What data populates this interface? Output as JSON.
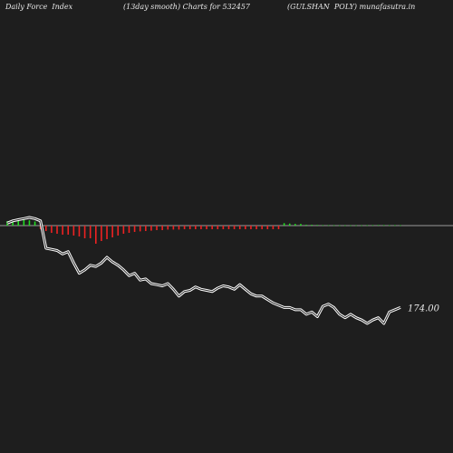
{
  "header": {
    "left": "Daily Force  Index",
    "center": "(13day smooth) Charts for 532457",
    "right": "(GULSHAN  POLY) munafasutra.in"
  },
  "chart_data": {
    "type": "line",
    "title": "(13day smooth) Charts for 532457",
    "last_value_label": "174.00",
    "colors": {
      "line": "#ffffff",
      "baseline": "#9a9a9a",
      "positive": "#22dd22",
      "negative": "#ee2222",
      "background": "#1e1e1e"
    },
    "line_values": [
      0.8,
      0.82,
      0.83,
      0.84,
      0.85,
      0.84,
      0.82,
      0.58,
      0.57,
      0.56,
      0.53,
      0.55,
      0.45,
      0.36,
      0.39,
      0.43,
      0.42,
      0.45,
      0.5,
      0.46,
      0.43,
      0.39,
      0.34,
      0.36,
      0.3,
      0.31,
      0.27,
      0.26,
      0.25,
      0.27,
      0.22,
      0.16,
      0.2,
      0.21,
      0.24,
      0.22,
      0.21,
      0.2,
      0.23,
      0.25,
      0.24,
      0.22,
      0.26,
      0.22,
      0.18,
      0.16,
      0.16,
      0.13,
      0.1,
      0.08,
      0.06,
      0.06,
      0.04,
      0.04,
      0.0,
      0.02,
      -0.02,
      0.07,
      0.09,
      0.06,
      0.0,
      -0.03,
      0.0,
      -0.03,
      -0.05,
      -0.08,
      -0.05,
      -0.03,
      -0.08,
      0.02,
      0.04,
      0.06
    ],
    "force_values": [
      0.55,
      0.65,
      0.75,
      0.8,
      0.65,
      0.5,
      -0.2,
      -0.3,
      -0.4,
      -0.45,
      -0.5,
      -0.5,
      -0.55,
      -0.6,
      -0.7,
      -0.7,
      -1.0,
      -0.85,
      -0.75,
      -0.65,
      -0.55,
      -0.45,
      -0.4,
      -0.35,
      -0.32,
      -0.3,
      -0.28,
      -0.25,
      -0.25,
      -0.22,
      -0.22,
      -0.22,
      -0.2,
      -0.2,
      -0.2,
      -0.2,
      -0.2,
      -0.2,
      -0.2,
      -0.2,
      -0.2,
      -0.2,
      -0.2,
      -0.2,
      -0.2,
      -0.2,
      -0.2,
      -0.2,
      -0.2,
      -0.2,
      0.3,
      0.25,
      0.2,
      0.2,
      0.1,
      0.1,
      0.08,
      0.06,
      0.05,
      0.04,
      0.03,
      0.03,
      0.03,
      0.03,
      0.03,
      0.05,
      0.06,
      0.07,
      0.06,
      0.05,
      0.05,
      0.05
    ]
  }
}
